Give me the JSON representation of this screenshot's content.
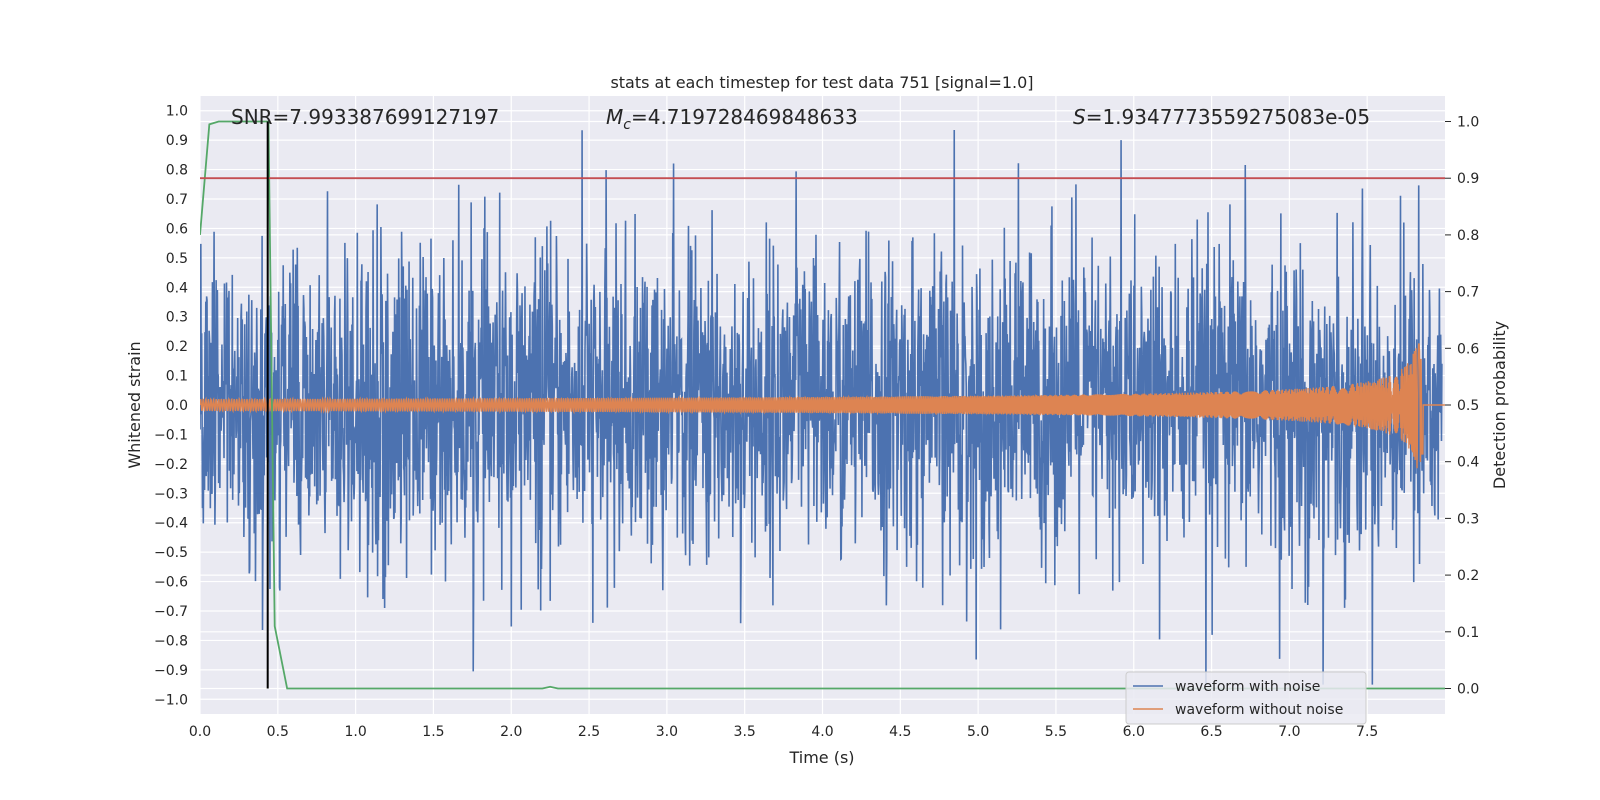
{
  "chart_data": {
    "type": "line",
    "title": "stats at each timestep for test data 751 [signal=1.0]",
    "xlabel": "Time (s)",
    "ylabel": "Whitened strain",
    "y2label": "Detection probability",
    "xlim": [
      0.0,
      8.0
    ],
    "ylim": [
      -1.05,
      1.05
    ],
    "y2lim": [
      -0.045,
      1.045
    ],
    "xticks": [
      "0.0",
      "0.5",
      "1.0",
      "1.5",
      "2.0",
      "2.5",
      "3.0",
      "3.5",
      "4.0",
      "4.5",
      "5.0",
      "5.5",
      "6.0",
      "6.5",
      "7.0",
      "7.5"
    ],
    "yticks": [
      "1.0",
      "0.9",
      "0.8",
      "0.7",
      "0.6",
      "0.5",
      "0.4",
      "0.3",
      "0.2",
      "0.1",
      "0.0",
      "−0.1",
      "−0.2",
      "−0.3",
      "−0.4",
      "−0.5",
      "−0.6",
      "−0.7",
      "−0.8",
      "−0.9",
      "−1.0"
    ],
    "y2ticks": [
      "1.0",
      "0.9",
      "0.8",
      "0.7",
      "0.6",
      "0.5",
      "0.4",
      "0.3",
      "0.2",
      "0.1",
      "0.0"
    ],
    "grid": true,
    "legend_position": "bottom-right",
    "annotations": {
      "snr": "SNR=7.993387699127197",
      "mc_symbol": "M",
      "mc_sub": "c",
      "mc_value": "=4.719728469848633",
      "s_symbol": "S",
      "s_value": "=1.9347773559275083e-05"
    },
    "series": [
      {
        "name": "waveform with noise",
        "color": "#4c72b0",
        "axis": "left",
        "envelope_peak": 1.0,
        "x_end": 7.98
      },
      {
        "name": "waveform without noise",
        "color": "#dd8452",
        "axis": "left",
        "amplitude_start": 0.02,
        "amplitude_peak": 0.22,
        "merger_time": 7.86
      },
      {
        "name": "",
        "color": "#55a868",
        "axis": "right",
        "x": [
          0.0,
          0.06,
          0.12,
          0.44,
          0.48,
          0.56,
          2.2,
          2.25,
          2.3,
          8.0
        ],
        "y": [
          0.8,
          0.995,
          1.0,
          1.0,
          0.11,
          0.0,
          0.0,
          0.003,
          0.0,
          0.0
        ]
      },
      {
        "name": "",
        "color": "#c44e52",
        "axis": "right",
        "type": "hline",
        "y": 0.9
      },
      {
        "name": "",
        "color": "#000000",
        "axis": "right",
        "type": "vline",
        "x": 0.435,
        "y_range": [
          0.0,
          1.0
        ]
      }
    ]
  }
}
